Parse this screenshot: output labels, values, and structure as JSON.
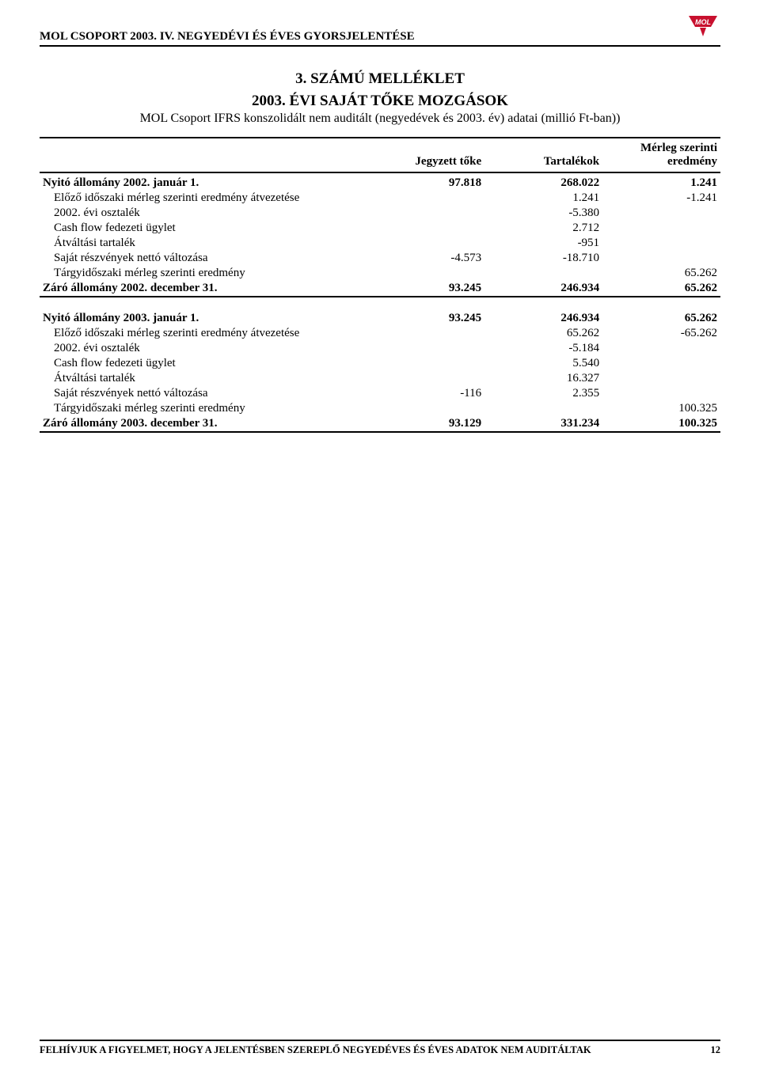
{
  "header": {
    "title": "MOL CSOPORT 2003. IV. NEGYEDÉVI ÉS ÉVES GYORSJELENTÉSE",
    "logo_text": "MOL",
    "logo_bg": "#c8102e",
    "logo_text_color": "#ffffff"
  },
  "titles": {
    "attachment": "3. SZÁMÚ MELLÉKLET",
    "year": "2003. ÉVI SAJÁT TŐKE MOZGÁSOK",
    "subtitle": "MOL Csoport IFRS konszolidált nem auditált (negyedévek és 2003. év) adatai (millió Ft-ban))"
  },
  "table": {
    "type": "table",
    "columns": [
      "",
      "Jegyzett tőke",
      "Tartalékok",
      "Mérleg szerinti eredmény"
    ],
    "rows1": [
      {
        "label": "Nyitó állomány 2002. január 1.",
        "c1": "97.818",
        "c2": "268.022",
        "c3": "1.241",
        "bold": true
      },
      {
        "label": "Előző időszaki mérleg szerinti eredmény átvezetése",
        "c1": "",
        "c2": "1.241",
        "c3": "-1.241",
        "indent": true
      },
      {
        "label": "2002. évi osztalék",
        "c1": "",
        "c2": "-5.380",
        "c3": "",
        "indent": true
      },
      {
        "label": "Cash flow fedezeti ügylet",
        "c1": "",
        "c2": "2.712",
        "c3": "",
        "indent": true
      },
      {
        "label": "Átváltási tartalék",
        "c1": "",
        "c2": "-951",
        "c3": "",
        "indent": true
      },
      {
        "label": "Saját részvények nettó változása",
        "c1": "-4.573",
        "c2": "-18.710",
        "c3": "",
        "indent": true
      },
      {
        "label": "Tárgyidőszaki mérleg szerinti eredmény",
        "c1": "",
        "c2": "",
        "c3": "65.262",
        "indent": true
      },
      {
        "label": "Záró állomány 2002. december 31.",
        "c1": "93.245",
        "c2": "246.934",
        "c3": "65.262",
        "bold": true,
        "end": true
      }
    ],
    "rows2": [
      {
        "label": "Nyitó állomány 2003. január 1.",
        "c1": "93.245",
        "c2": "246.934",
        "c3": "65.262",
        "bold": true
      },
      {
        "label": "Előző időszaki mérleg szerinti eredmény átvezetése",
        "c1": "",
        "c2": "65.262",
        "c3": "-65.262",
        "indent": true
      },
      {
        "label": "2002. évi osztalék",
        "c1": "",
        "c2": "-5.184",
        "c3": "",
        "indent": true
      },
      {
        "label": "Cash flow fedezeti ügylet",
        "c1": "",
        "c2": "5.540",
        "c3": "",
        "indent": true
      },
      {
        "label": "Átváltási tartalék",
        "c1": "",
        "c2": "16.327",
        "c3": "",
        "indent": true
      },
      {
        "label": "Saját részvények nettó változása",
        "c1": "-116",
        "c2": "2.355",
        "c3": "",
        "indent": true
      },
      {
        "label": "Tárgyidőszaki mérleg szerinti eredmény",
        "c1": "",
        "c2": "",
        "c3": "100.325",
        "indent": true
      },
      {
        "label": "Záró állomány 2003. december 31.",
        "c1": "93.129",
        "c2": "331.234",
        "c3": "100.325",
        "bold": true,
        "end": true
      }
    ]
  },
  "footer": {
    "text": "FELHÍVJUK A FIGYELMET, HOGY A JELENTÉSBEN SZEREPLŐ NEGYEDÉVES ÉS ÉVES ADATOK NEM AUDITÁLTAK",
    "page": "12"
  }
}
